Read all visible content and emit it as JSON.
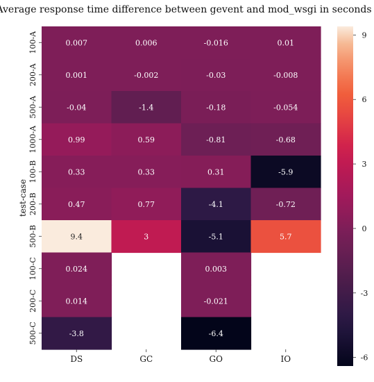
{
  "chart_data": {
    "type": "heatmap",
    "title": "Average response time difference between gevent and mod_wsgi in seconds",
    "xlabel": "",
    "ylabel": "test-case",
    "x_categories": [
      "DS",
      "GC",
      "GO",
      "IO"
    ],
    "y_categories": [
      "100-A",
      "200-A",
      "500-A",
      "1000-A",
      "100-B",
      "200-B",
      "500-B",
      "100-C",
      "200-C",
      "500-C"
    ],
    "values": [
      [
        0.007,
        0.006,
        -0.016,
        0.01
      ],
      [
        0.001,
        -0.002,
        -0.03,
        -0.008
      ],
      [
        -0.04,
        -1.4,
        -0.18,
        -0.054
      ],
      [
        0.99,
        0.59,
        -0.81,
        -0.68
      ],
      [
        0.33,
        0.33,
        0.31,
        -5.9
      ],
      [
        0.47,
        0.77,
        -4.1,
        -0.72
      ],
      [
        9.4,
        3,
        -5.1,
        5.7
      ],
      [
        0.024,
        null,
        0.003,
        null
      ],
      [
        0.014,
        null,
        -0.021,
        null
      ],
      [
        -3.8,
        null,
        -6.4,
        null
      ]
    ],
    "labels": [
      [
        "0.007",
        "0.006",
        "-0.016",
        "0.01"
      ],
      [
        "0.001",
        "-0.002",
        "-0.03",
        "-0.008"
      ],
      [
        "-0.04",
        "-1.4",
        "-0.18",
        "-0.054"
      ],
      [
        "0.99",
        "0.59",
        "-0.81",
        "-0.68"
      ],
      [
        "0.33",
        "0.33",
        "0.31",
        "-5.9"
      ],
      [
        "0.47",
        "0.77",
        "-4.1",
        "-0.72"
      ],
      [
        "9.4",
        "3",
        "-5.1",
        "5.7"
      ],
      [
        "0.024",
        "",
        "0.003",
        ""
      ],
      [
        "0.014",
        "",
        "-0.021",
        ""
      ],
      [
        "-3.8",
        "",
        "-6.4",
        ""
      ]
    ],
    "colorbar": {
      "range": [
        -6.4,
        9.4
      ],
      "ticks": [
        -6,
        -3,
        0,
        3,
        6,
        9
      ],
      "tick_labels": [
        "-6",
        "-3",
        "0",
        "3",
        "6",
        "9"
      ],
      "colormap": "rocket"
    }
  }
}
